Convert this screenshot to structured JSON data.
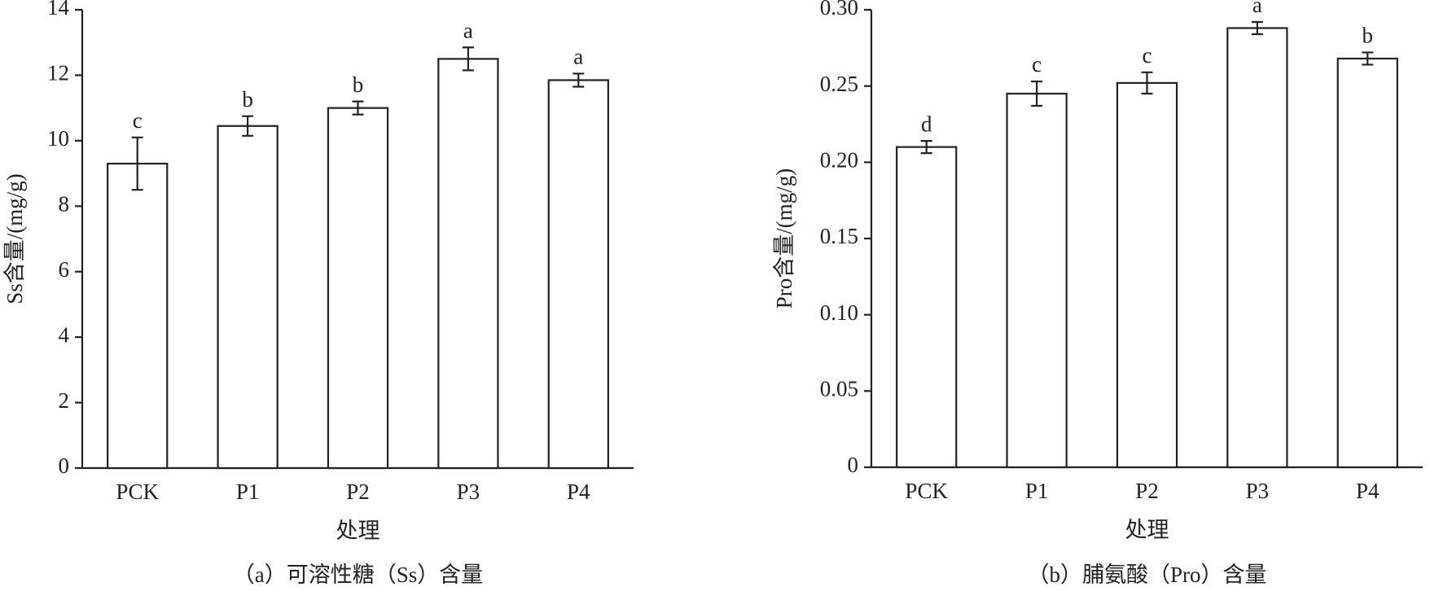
{
  "chart_data": [
    {
      "type": "bar",
      "caption": "（a）可溶性糖（Ss）含量",
      "xlabel": "处理",
      "ylabel": "Ss含量/(mg/g)",
      "categories": [
        "PCK",
        "P1",
        "P2",
        "P3",
        "P4"
      ],
      "values": [
        9.3,
        10.45,
        11.0,
        12.5,
        11.85
      ],
      "errors": [
        0.8,
        0.3,
        0.2,
        0.35,
        0.2
      ],
      "significance_letters": [
        "c",
        "b",
        "b",
        "a",
        "a"
      ],
      "color": "#ffffff",
      "ylim": [
        0,
        14
      ],
      "yticks": [
        0,
        2,
        4,
        6,
        8,
        10,
        12,
        14
      ]
    },
    {
      "type": "bar",
      "caption": "（b）脯氨酸（Pro）含量",
      "xlabel": "处理",
      "ylabel": "Pro含量/(mg/g)",
      "categories": [
        "PCK",
        "P1",
        "P2",
        "P3",
        "P4"
      ],
      "values": [
        0.21,
        0.245,
        0.252,
        0.288,
        0.268
      ],
      "errors": [
        0.004,
        0.008,
        0.007,
        0.004,
        0.004
      ],
      "significance_letters": [
        "d",
        "c",
        "c",
        "a",
        "b"
      ],
      "color": "#ffffff",
      "ylim": [
        0,
        0.3
      ],
      "yticks": [
        0,
        0.05,
        {
          "value": 0.1,
          "label": "0.10"
        },
        0.15,
        {
          "value": 0.2,
          "label": "0.20"
        },
        0.25,
        {
          "value": 0.3,
          "label": "0.30"
        }
      ]
    }
  ]
}
